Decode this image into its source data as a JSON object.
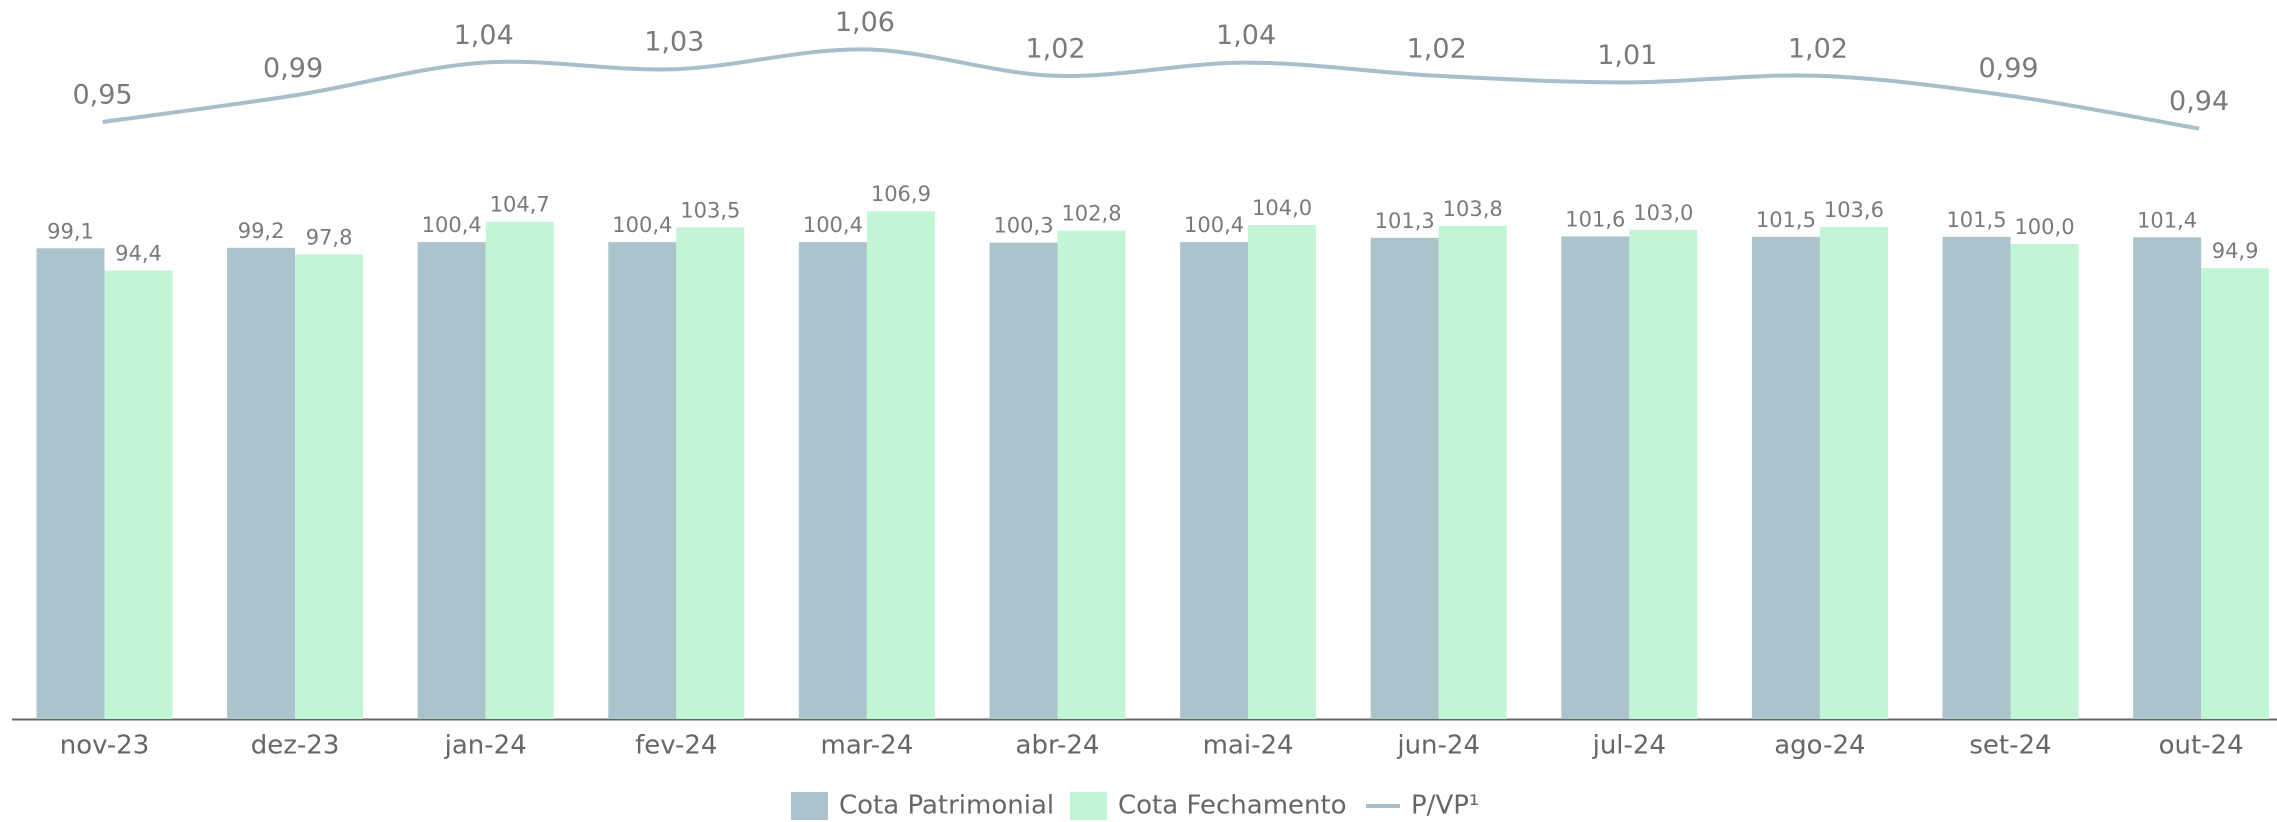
{
  "chart_data": {
    "type": "bar",
    "categories": [
      "nov-23",
      "dez-23",
      "jan-24",
      "fev-24",
      "mar-24",
      "abr-24",
      "mai-24",
      "jun-24",
      "jul-24",
      "ago-24",
      "set-24",
      "out-24"
    ],
    "series": [
      {
        "name": "Cota Patrimonial",
        "color": "#abc4cc",
        "values": [
          99.1,
          99.2,
          100.4,
          100.4,
          100.4,
          100.3,
          100.4,
          101.3,
          101.6,
          101.5,
          101.5,
          101.4
        ],
        "value_labels": [
          "99,1",
          "99,2",
          "100,4",
          "100,4",
          "100,4",
          "100,3",
          "100,4",
          "101,3",
          "101,6",
          "101,5",
          "101,5",
          "101,4"
        ]
      },
      {
        "name": "Cota Fechamento",
        "color": "#c2f4d6",
        "values": [
          94.4,
          97.8,
          104.7,
          103.5,
          106.9,
          102.8,
          104.0,
          103.8,
          103.0,
          103.6,
          100.0,
          94.9
        ],
        "value_labels": [
          "94,4",
          "97,8",
          "104,7",
          "103,5",
          "106,9",
          "102,8",
          "104,0",
          "103,8",
          "103,0",
          "103,6",
          "100,0",
          "94,9"
        ]
      },
      {
        "name": "P/VP¹",
        "type": "line",
        "axis": "y2",
        "color": "#a7bfc8",
        "values": [
          0.95,
          0.99,
          1.04,
          1.03,
          1.06,
          1.02,
          1.04,
          1.02,
          1.01,
          1.02,
          0.99,
          0.94
        ],
        "value_labels": [
          "0,95",
          "0,99",
          "1,04",
          "1,03",
          "1,06",
          "1,02",
          "1,04",
          "1,02",
          "1,01",
          "1,02",
          "0,99",
          "0,94"
        ]
      }
    ],
    "ylim": [
      0,
      110
    ],
    "y2lim": [
      0.9,
      1.1
    ],
    "legend": "bottom"
  }
}
